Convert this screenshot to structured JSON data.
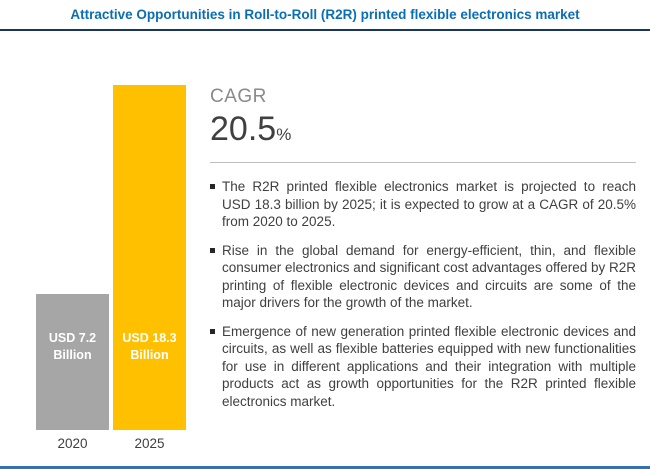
{
  "header": {
    "title": "Attractive Opportunities in Roll-to-Roll (R2R) printed flexible electronics market"
  },
  "colors": {
    "title_blue": "#0a6eb4",
    "top_rule_navy": "#17375e",
    "bottom_rule_blue": "#2e74b5",
    "bar_2020_gray": "#a6a6a6",
    "bar_2025_yellow": "#ffc000",
    "body_text": "#404040",
    "cagr_gray": "#8a8a8a"
  },
  "chart_data": {
    "type": "bar",
    "title": "Attractive Opportunities in Roll-to-Roll (R2R) printed flexible electronics market",
    "categories": [
      "2020",
      "2025"
    ],
    "values": [
      7.2,
      18.3
    ],
    "unit": "USD Billion",
    "bar_labels": [
      "USD 7.2 Billion",
      "USD 18.3 Billion"
    ],
    "bar_colors": [
      "#a6a6a6",
      "#ffc000"
    ],
    "ylim": [
      0,
      18.3
    ],
    "xlabel": "",
    "ylabel": "",
    "grid": false,
    "legend": false
  },
  "cagr": {
    "label": "CAGR",
    "value": "20.5",
    "unit": "%"
  },
  "bullets": [
    "The R2R printed flexible electronics market is projected to reach USD 18.3 billion by 2025; it is expected to grow at a CAGR of 20.5% from 2020 to 2025.",
    "Rise in the global demand for energy-efficient, thin, and flexible consumer electronics and significant cost advantages offered by R2R printing of flexible electronic devices and circuits are some of the major drivers for the growth of the market.",
    "Emergence of new generation printed flexible electronic devices and circuits, as well as flexible batteries equipped with new functionalities for use in different applications and their integration with multiple products act as growth opportunities for the R2R printed flexible electronics market."
  ]
}
